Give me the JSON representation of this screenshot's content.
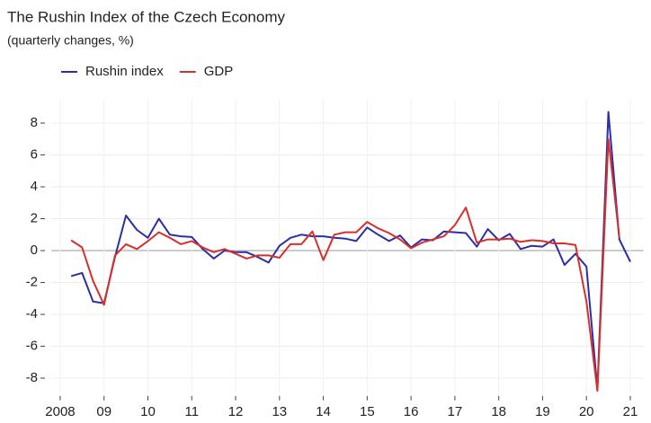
{
  "chart_data": {
    "type": "line",
    "title": "The Rushin Index of the Czech Economy",
    "subtitle": "(quarterly changes, %)",
    "x": [
      2008.25,
      2008.5,
      2008.75,
      2009,
      2009.25,
      2009.5,
      2009.75,
      2010,
      2010.25,
      2010.5,
      2010.75,
      2011,
      2011.25,
      2011.5,
      2011.75,
      2012,
      2012.25,
      2012.5,
      2012.75,
      2013,
      2013.25,
      2013.5,
      2013.75,
      2014,
      2014.25,
      2014.5,
      2014.75,
      2015,
      2015.25,
      2015.5,
      2015.75,
      2016,
      2016.25,
      2016.5,
      2016.75,
      2017,
      2017.25,
      2017.5,
      2017.75,
      2018,
      2018.25,
      2018.5,
      2018.75,
      2019,
      2019.25,
      2019.5,
      2019.75,
      2020,
      2020.25,
      2020.5,
      2020.75,
      2021
    ],
    "series": [
      {
        "name": "Rushin index",
        "color": "#2b2fa6",
        "values": [
          -1.6,
          -1.4,
          -3.2,
          -3.3,
          -0.4,
          2.2,
          1.3,
          0.8,
          2.0,
          1.0,
          0.9,
          0.85,
          0.1,
          -0.5,
          0.0,
          -0.1,
          -0.1,
          -0.4,
          -0.75,
          0.3,
          0.8,
          1.0,
          0.9,
          0.9,
          0.8,
          0.75,
          0.6,
          1.45,
          1.0,
          0.6,
          0.95,
          0.2,
          0.7,
          0.65,
          1.2,
          1.15,
          1.1,
          0.25,
          1.35,
          0.65,
          1.05,
          0.1,
          0.3,
          0.25,
          0.7,
          -0.9,
          -0.2,
          -1.0,
          -8.7,
          8.7,
          0.7,
          -0.7
        ]
      },
      {
        "name": "GDP",
        "color": "#d6302b",
        "values": [
          0.65,
          0.2,
          -1.9,
          -3.4,
          -0.3,
          0.4,
          0.1,
          0.6,
          1.15,
          0.8,
          0.4,
          0.6,
          0.2,
          -0.1,
          0.1,
          -0.2,
          -0.5,
          -0.3,
          -0.3,
          -0.45,
          0.4,
          0.4,
          1.2,
          -0.6,
          1.0,
          1.15,
          1.15,
          1.8,
          1.4,
          1.1,
          0.7,
          0.15,
          0.5,
          0.7,
          0.9,
          1.6,
          2.7,
          0.5,
          0.7,
          0.7,
          0.75,
          0.55,
          0.65,
          0.6,
          0.45,
          0.45,
          0.35,
          -3.2,
          -8.8,
          7.0,
          0.8,
          null
        ]
      }
    ],
    "xlim": [
      2007.8,
      2021.3
    ],
    "xticks": [
      {
        "value": 2008,
        "label": "2008"
      },
      {
        "value": 2009,
        "label": "09"
      },
      {
        "value": 2010,
        "label": "10"
      },
      {
        "value": 2011,
        "label": "11"
      },
      {
        "value": 2012,
        "label": "12"
      },
      {
        "value": 2013,
        "label": "13"
      },
      {
        "value": 2014,
        "label": "14"
      },
      {
        "value": 2015,
        "label": "15"
      },
      {
        "value": 2016,
        "label": "16"
      },
      {
        "value": 2017,
        "label": "17"
      },
      {
        "value": 2018,
        "label": "18"
      },
      {
        "value": 2019,
        "label": "19"
      },
      {
        "value": 2020,
        "label": "20"
      },
      {
        "value": 2021,
        "label": "21"
      }
    ],
    "ylim": [
      -9,
      9.5
    ],
    "yticks": [
      -8,
      -6,
      -4,
      -2,
      0,
      2,
      4,
      6,
      8
    ],
    "grid": true
  }
}
